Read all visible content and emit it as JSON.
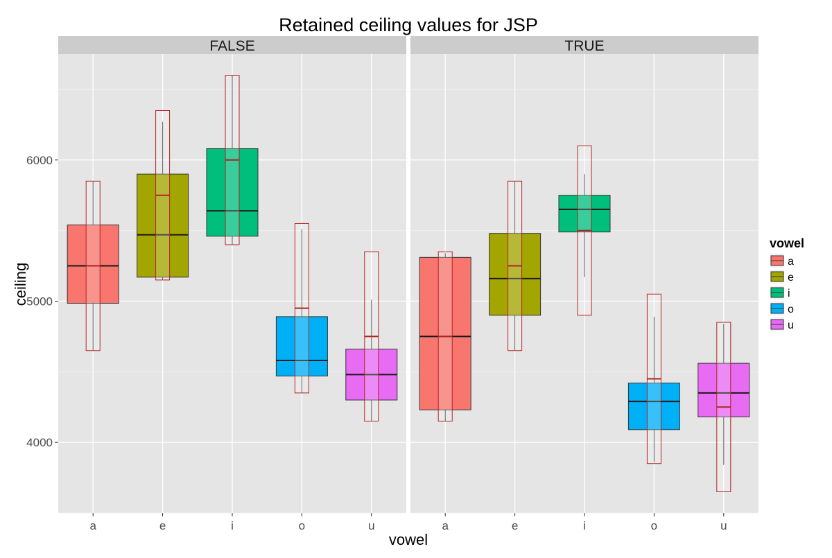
{
  "chart_data": {
    "type": "boxplot",
    "title": "Retained ceiling values for JSP",
    "xlabel": "vowel",
    "ylabel": "ceiling",
    "categories": [
      "a",
      "e",
      "i",
      "o",
      "u"
    ],
    "facets": [
      "FALSE",
      "TRUE"
    ],
    "ylim": [
      3500,
      6750
    ],
    "yticks": [
      4000,
      5000,
      6000
    ],
    "grid": true,
    "legend": {
      "title": "vowel",
      "position": "right",
      "entries": [
        "a",
        "e",
        "i",
        "o",
        "u"
      ]
    },
    "colors": {
      "a": "#F8766D",
      "e": "#A3A500",
      "i": "#00BF7D",
      "o": "#00B0F6",
      "u": "#E76BF3",
      "overlay_outline": "#B22222",
      "panel_bg": "#E5E5E5",
      "strip_bg": "#CCCCCC"
    },
    "boxes": {
      "FALSE": [
        {
          "vowel": "a",
          "q1": 4985,
          "median": 5250,
          "q3": 5540,
          "whisker_low": 4650,
          "whisker_high": 5850
        },
        {
          "vowel": "e",
          "q1": 5170,
          "median": 5470,
          "q3": 5900,
          "whisker_low": 5150,
          "whisker_high": 6270
        },
        {
          "vowel": "i",
          "q1": 5460,
          "median": 5640,
          "q3": 6080,
          "whisker_low": 5400,
          "whisker_high": 6600
        },
        {
          "vowel": "o",
          "q1": 4470,
          "median": 4580,
          "q3": 4890,
          "whisker_low": 4350,
          "whisker_high": 5510
        },
        {
          "vowel": "u",
          "q1": 4300,
          "median": 4480,
          "q3": 4660,
          "whisker_low": 4150,
          "whisker_high": 5010
        }
      ],
      "TRUE": [
        {
          "vowel": "a",
          "q1": 4230,
          "median": 4750,
          "q3": 5310,
          "whisker_low": 4150,
          "whisker_high": 5340
        },
        {
          "vowel": "e",
          "q1": 4900,
          "median": 5160,
          "q3": 5480,
          "whisker_low": 4650,
          "whisker_high": 5850
        },
        {
          "vowel": "i",
          "q1": 5490,
          "median": 5650,
          "q3": 5750,
          "whisker_low": 5170,
          "whisker_high": 5900
        },
        {
          "vowel": "o",
          "q1": 4090,
          "median": 4290,
          "q3": 4420,
          "whisker_low": 3860,
          "whisker_high": 4890
        },
        {
          "vowel": "u",
          "q1": 4180,
          "median": 4350,
          "q3": 4560,
          "whisker_low": 3840,
          "whisker_high": 4840
        }
      ]
    },
    "overlay_ranges": {
      "FALSE": [
        {
          "vowel": "a",
          "low": 4650,
          "mid": 5250,
          "high": 5850
        },
        {
          "vowel": "e",
          "low": 5150,
          "mid": 5750,
          "high": 6350
        },
        {
          "vowel": "i",
          "low": 5400,
          "mid": 6000,
          "high": 6600
        },
        {
          "vowel": "o",
          "low": 4350,
          "mid": 4950,
          "high": 5550
        },
        {
          "vowel": "u",
          "low": 4150,
          "mid": 4750,
          "high": 5350
        }
      ],
      "TRUE": [
        {
          "vowel": "a",
          "low": 4150,
          "mid": 4750,
          "high": 5350
        },
        {
          "vowel": "e",
          "low": 4650,
          "mid": 5250,
          "high": 5850
        },
        {
          "vowel": "i",
          "low": 4900,
          "mid": 5500,
          "high": 6100
        },
        {
          "vowel": "o",
          "low": 3850,
          "mid": 4450,
          "high": 5050
        },
        {
          "vowel": "u",
          "low": 3650,
          "mid": 4250,
          "high": 4850
        }
      ]
    }
  }
}
